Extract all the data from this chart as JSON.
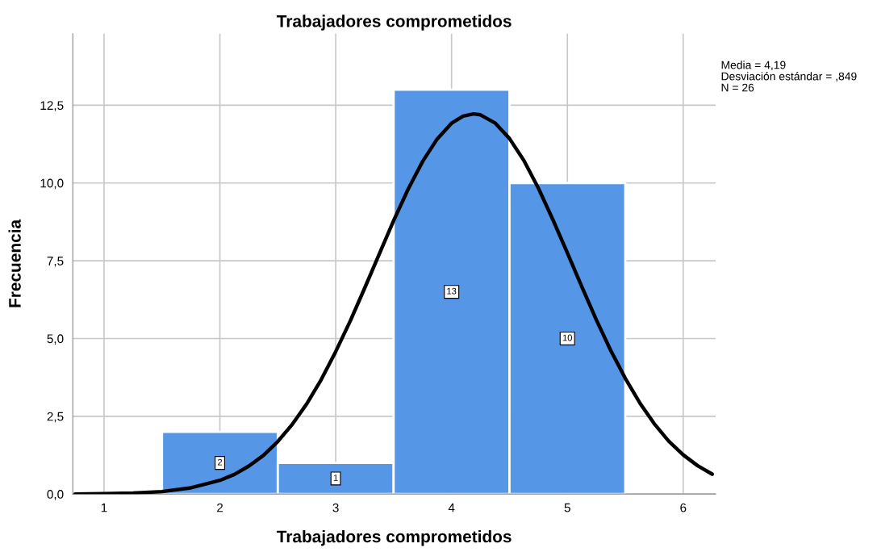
{
  "chart_data": {
    "type": "histogram",
    "title": "Trabajadores comprometidos",
    "xlabel": "Trabajadores comprometidos",
    "ylabel": "Frecuencia",
    "bins": [
      1.5,
      2.5,
      3.5,
      4.5,
      5.5
    ],
    "series": [
      {
        "color": "#5596e6",
        "values": [
          2,
          1,
          13,
          10
        ],
        "value_labels": [
          "2",
          "1",
          "13",
          "10"
        ]
      },
      {
        "type": "line",
        "color": "#000000",
        "x": [
          0.75,
          1.0,
          1.25,
          1.5,
          1.75,
          2.0,
          2.125,
          2.25,
          2.375,
          2.5,
          2.625,
          2.75,
          2.875,
          3.0,
          3.125,
          3.25,
          3.375,
          3.5,
          3.625,
          3.75,
          3.875,
          4.0,
          4.1,
          4.19,
          4.25,
          4.375,
          4.5,
          4.625,
          4.75,
          4.875,
          5.0,
          5.125,
          5.25,
          5.375,
          5.5,
          5.625,
          5.75,
          5.875,
          6.0,
          6.125,
          6.25
        ],
        "values": [
          0.0,
          0.01,
          0.03,
          0.08,
          0.2,
          0.44,
          0.63,
          0.9,
          1.24,
          1.69,
          2.24,
          2.9,
          3.68,
          4.58,
          5.56,
          6.62,
          7.71,
          8.79,
          9.8,
          10.69,
          11.41,
          11.92,
          12.15,
          12.22,
          12.19,
          11.93,
          11.43,
          10.72,
          9.83,
          8.82,
          7.75,
          6.66,
          5.6,
          4.61,
          3.72,
          2.93,
          2.26,
          1.7,
          1.26,
          0.91,
          0.64
        ]
      }
    ],
    "xlim": [
      0.73,
      6.28
    ],
    "xticks": [
      1,
      2,
      3,
      4,
      5,
      6
    ],
    "ylim": [
      0,
      14.8
    ],
    "yticks": [
      {
        "value": 0,
        "label": "0,0"
      },
      {
        "value": 2.5,
        "label": "2,5"
      },
      {
        "value": 5,
        "label": "5,0"
      },
      {
        "value": 7.5,
        "label": "7,5"
      },
      {
        "value": 10,
        "label": "10,0"
      },
      {
        "value": 12.5,
        "label": "12,5"
      }
    ],
    "grid": true,
    "legend": false,
    "annotations": [
      "Media = 4,19",
      "Desviación estándar = ,849",
      "N = 26"
    ]
  }
}
